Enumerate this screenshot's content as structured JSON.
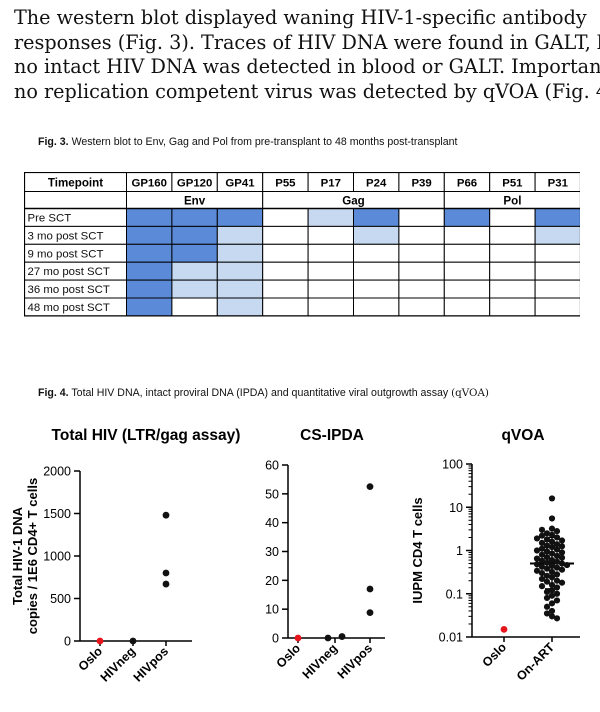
{
  "paragraph": {
    "lines": [
      "The western blot displayed waning HIV-1-specific antibody",
      "responses (Fig. 3). Traces of HIV DNA were found in GALT, but",
      "no intact HIV DNA was detected in blood or GALT. Importantly,",
      "no replication competent virus was detected by qVOA (Fig. 4)."
    ]
  },
  "fig3": {
    "label": "Fig. 3.",
    "caption": "Western blot to Env, Gag and Pol from pre-transplant to 48 months post-transplant",
    "header_first": "Timepoint",
    "columns": [
      "GP160",
      "GP120",
      "GP41",
      "P55",
      "P17",
      "P24",
      "P39",
      "P66",
      "P51",
      "P31"
    ],
    "groups": [
      {
        "name": "Env",
        "span": 3
      },
      {
        "name": "Gag",
        "span": 4
      },
      {
        "name": "Pol",
        "span": 3
      }
    ],
    "rows": [
      {
        "label": "Pre SCT",
        "levels": [
          2,
          2,
          2,
          0,
          1,
          2,
          0,
          2,
          0,
          2
        ]
      },
      {
        "label": "3 mo post SCT",
        "levels": [
          2,
          2,
          1,
          0,
          0,
          1,
          0,
          0,
          0,
          1
        ]
      },
      {
        "label": "9 mo post SCT",
        "levels": [
          2,
          2,
          1,
          0,
          0,
          0,
          0,
          0,
          0,
          0
        ]
      },
      {
        "label": "27 mo post SCT",
        "levels": [
          2,
          1,
          1,
          0,
          0,
          0,
          0,
          0,
          0,
          0
        ]
      },
      {
        "label": "36 mo post SCT",
        "levels": [
          2,
          1,
          1,
          0,
          0,
          0,
          0,
          0,
          0,
          0
        ]
      },
      {
        "label": "48 mo post SCT",
        "levels": [
          2,
          0,
          1,
          0,
          0,
          0,
          0,
          0,
          0,
          0
        ]
      }
    ],
    "colors": {
      "strong": "#5b8bd8",
      "weak": "#c6d9f0",
      "none": "#ffffff",
      "border": "#000000"
    }
  },
  "fig4": {
    "label": "Fig. 4.",
    "caption_sans": "Total HIV DNA, intact proviral DNA (IPDA) and quantitative viral outgrowth assay",
    "caption_serif": "(qVOA)"
  },
  "chart_data": [
    {
      "type": "scatter",
      "title": "Total HIV (LTR/gag assay)",
      "ylabel": "Total HIV-1 DNA copies / 1E6 CD4+ T cells",
      "categories": [
        "Oslo",
        "HIVneg",
        "HIVpos"
      ],
      "ylim": [
        0,
        2000
      ],
      "yticks": [
        "0",
        "500",
        "1000",
        "1500",
        "2000"
      ],
      "yscale": "linear",
      "points": [
        {
          "category": "Oslo",
          "value": 0,
          "color": "#e8141b"
        },
        {
          "category": "HIVneg",
          "value": 0,
          "color": "#111111"
        },
        {
          "category": "HIVpos",
          "value": 1480,
          "color": "#111111"
        },
        {
          "category": "HIVpos",
          "value": 800,
          "color": "#111111"
        },
        {
          "category": "HIVpos",
          "value": 670,
          "color": "#111111"
        }
      ]
    },
    {
      "type": "scatter",
      "title": "CS-IPDA",
      "ylabel": "",
      "categories": [
        "Oslo",
        "HIVneg",
        "HIVpos"
      ],
      "ylim": [
        0,
        60
      ],
      "yticks": [
        "0",
        "10",
        "20",
        "30",
        "40",
        "50",
        "60"
      ],
      "yscale": "linear",
      "points": [
        {
          "category": "Oslo",
          "value": 0,
          "color": "#e8141b"
        },
        {
          "category": "HIVneg",
          "value": 0,
          "color": "#111111",
          "offset": -1
        },
        {
          "category": "HIVneg",
          "value": 0.5,
          "color": "#111111",
          "offset": 1
        },
        {
          "category": "HIVpos",
          "value": 52.5,
          "color": "#111111"
        },
        {
          "category": "HIVpos",
          "value": 17,
          "color": "#111111"
        },
        {
          "category": "HIVpos",
          "value": 8.8,
          "color": "#111111"
        }
      ]
    },
    {
      "type": "scatter",
      "title": "qVOA",
      "ylabel": "IUPM CD4 T cells",
      "categories": [
        "Oslo",
        "On-ART"
      ],
      "ylim": [
        0.01,
        100
      ],
      "yticks": [
        "0.01",
        "0.1",
        "1",
        "10",
        "100"
      ],
      "yscale": "log",
      "median": {
        "category": "On-ART",
        "value": 0.5
      },
      "error_bar": {
        "category": "On-ART",
        "low": 0.13,
        "high": 2.0
      },
      "points": [
        {
          "category": "Oslo",
          "value": 0.015,
          "color": "#e8141b"
        },
        {
          "category": "On-ART",
          "values": [
            16,
            5.5,
            3.2,
            3.0,
            2.8,
            2.5,
            2.3,
            2.2,
            2.0,
            1.9,
            1.8,
            1.7,
            1.6,
            1.5,
            1.4,
            1.3,
            1.25,
            1.2,
            1.1,
            1.05,
            1.0,
            0.95,
            0.9,
            0.85,
            0.8,
            0.75,
            0.7,
            0.68,
            0.65,
            0.6,
            0.58,
            0.55,
            0.52,
            0.5,
            0.48,
            0.46,
            0.44,
            0.42,
            0.4,
            0.38,
            0.36,
            0.34,
            0.32,
            0.3,
            0.28,
            0.26,
            0.24,
            0.22,
            0.2,
            0.19,
            0.18,
            0.16,
            0.15,
            0.14,
            0.12,
            0.11,
            0.1,
            0.09,
            0.08,
            0.07,
            0.06,
            0.05,
            0.04,
            0.035,
            0.03,
            0.027
          ],
          "color": "#111111"
        }
      ]
    }
  ]
}
